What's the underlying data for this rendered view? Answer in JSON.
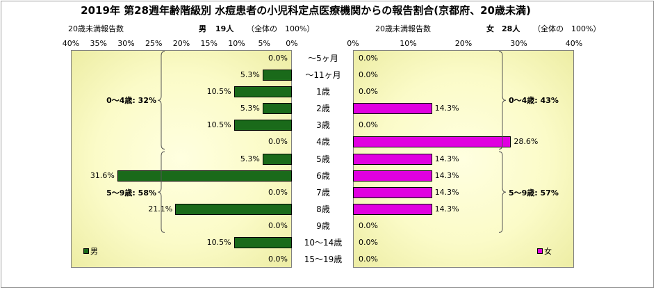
{
  "title": "2019年 第28週年齢階級別 水痘患者の小児科定点医療機関からの報告割合(京都府、20歳未満)",
  "male_header": {
    "left": "20歳未満報告数",
    "sex": "男",
    "count": "19人",
    "total": "（全体の　100%）"
  },
  "female_header": {
    "left": "20歳未満報告数",
    "sex": "女",
    "count": "28人",
    "total": "（全体の　100%）"
  },
  "colors": {
    "male": "#1a6a1a",
    "female": "#e000e0"
  },
  "chart_data": [
    {
      "type": "bar",
      "orientation": "horizontal",
      "direction": "right-to-left",
      "categories": [
        "～5ヶ月",
        "～11ヶ月",
        "1歳",
        "2歳",
        "3歳",
        "4歳",
        "5歳",
        "6歳",
        "7歳",
        "8歳",
        "9歳",
        "10～14歳",
        "15～19歳"
      ],
      "series": [
        {
          "name": "男",
          "values": [
            0.0,
            5.3,
            10.5,
            5.3,
            10.5,
            0.0,
            5.3,
            31.6,
            0.0,
            21.1,
            0.0,
            10.5,
            0.0
          ]
        }
      ],
      "value_labels": [
        "0.0%",
        "5.3%",
        "10.5%",
        "5.3%",
        "10.5%",
        "0.0%",
        "5.3%",
        "31.6%",
        "0.0%",
        "21.1%",
        "0.0%",
        "10.5%",
        "0.0%"
      ],
      "xlim": [
        0,
        40
      ],
      "ticks": [
        "40%",
        "35%",
        "30%",
        "25%",
        "20%",
        "15%",
        "10%",
        "5%",
        "0%"
      ],
      "groups": [
        {
          "label": "0～4歳: 32%",
          "from": 0,
          "to": 5
        },
        {
          "label": "5～9歳: 58%",
          "from": 6,
          "to": 10
        }
      ],
      "legend": "bottom-left"
    },
    {
      "type": "bar",
      "orientation": "horizontal",
      "direction": "left-to-right",
      "categories": [
        "～5ヶ月",
        "～11ヶ月",
        "1歳",
        "2歳",
        "3歳",
        "4歳",
        "5歳",
        "6歳",
        "7歳",
        "8歳",
        "9歳",
        "10～14歳",
        "15～19歳"
      ],
      "series": [
        {
          "name": "女",
          "values": [
            0.0,
            0.0,
            0.0,
            14.3,
            0.0,
            28.6,
            14.3,
            14.3,
            14.3,
            14.3,
            0.0,
            0.0,
            0.0
          ]
        }
      ],
      "value_labels": [
        "0.0%",
        "0.0%",
        "0.0%",
        "14.3%",
        "0.0%",
        "28.6%",
        "14.3%",
        "14.3%",
        "14.3%",
        "14.3%",
        "0.0%",
        "0.0%",
        "0.0%"
      ],
      "xlim": [
        0,
        40
      ],
      "ticks": [
        "0%",
        "10%",
        "20%",
        "30%",
        "40%"
      ],
      "groups": [
        {
          "label": "0～4歳: 43%",
          "from": 0,
          "to": 5
        },
        {
          "label": "5～9歳: 57%",
          "from": 6,
          "to": 10
        }
      ],
      "legend": "bottom-right"
    }
  ]
}
